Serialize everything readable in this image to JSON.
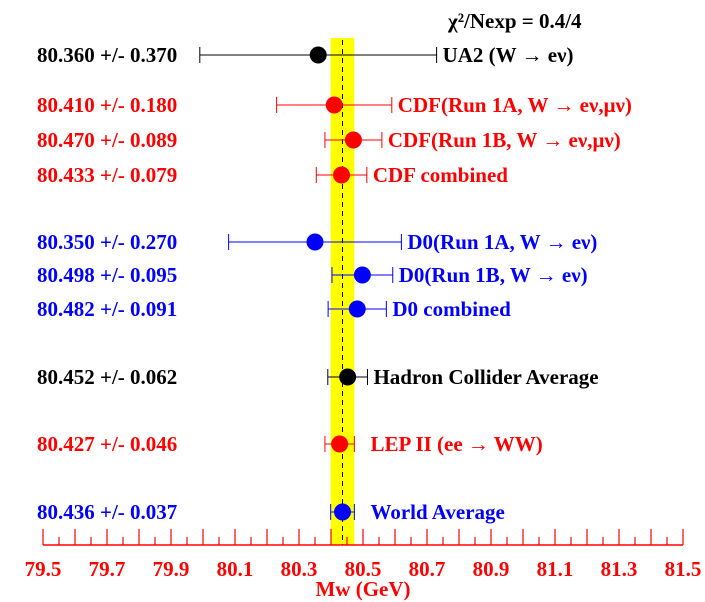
{
  "chart_data": {
    "type": "scatter",
    "title": "χ²/Nexp = 0.4/4",
    "xlabel": "Mw (GeV)",
    "xlim": [
      79.5,
      81.5
    ],
    "x_ticks": [
      "79.5",
      "79.7",
      "79.9",
      "80.1",
      "80.3",
      "80.5",
      "80.7",
      "80.9",
      "81.1",
      "81.3",
      "81.5"
    ],
    "band": {
      "center": 80.436,
      "error": 0.037,
      "color": "#ffff00"
    },
    "measurements": [
      {
        "label": "UA2 (W → eν)",
        "value_text": "80.360 +/- 0.370",
        "x": 80.36,
        "err": 0.37,
        "color": "#000000"
      },
      {
        "label": "CDF(Run 1A, W → eν,μν)",
        "value_text": "80.410 +/- 0.180",
        "x": 80.41,
        "err": 0.18,
        "color": "#ff0000"
      },
      {
        "label": "CDF(Run 1B, W → eν,μν)",
        "value_text": "80.470 +/- 0.089",
        "x": 80.47,
        "err": 0.089,
        "color": "#ff0000"
      },
      {
        "label": "CDF combined",
        "value_text": "80.433 +/- 0.079",
        "x": 80.433,
        "err": 0.079,
        "color": "#ff0000"
      },
      {
        "label": "D0(Run 1A,  W → eν)",
        "value_text": "80.350 +/- 0.270",
        "x": 80.35,
        "err": 0.27,
        "color": "#0000ff"
      },
      {
        "label": "D0(Run 1B, W → eν)",
        "value_text": "80.498 +/- 0.095",
        "x": 80.498,
        "err": 0.095,
        "color": "#0000ff"
      },
      {
        "label": "D0 combined",
        "value_text": "80.482 +/- 0.091",
        "x": 80.482,
        "err": 0.091,
        "color": "#0000ff"
      },
      {
        "label": "Hadron Collider Average",
        "value_text": "80.452 +/- 0.062",
        "x": 80.452,
        "err": 0.062,
        "color": "#000000"
      },
      {
        "label": "LEP II (ee → WW)",
        "value_text": "80.427 +/- 0.046",
        "x": 80.427,
        "err": 0.046,
        "color": "#ff0000"
      },
      {
        "label": "World Average",
        "value_text": "80.436 +/- 0.037",
        "x": 80.436,
        "err": 0.037,
        "color": "#0000ff"
      }
    ]
  }
}
